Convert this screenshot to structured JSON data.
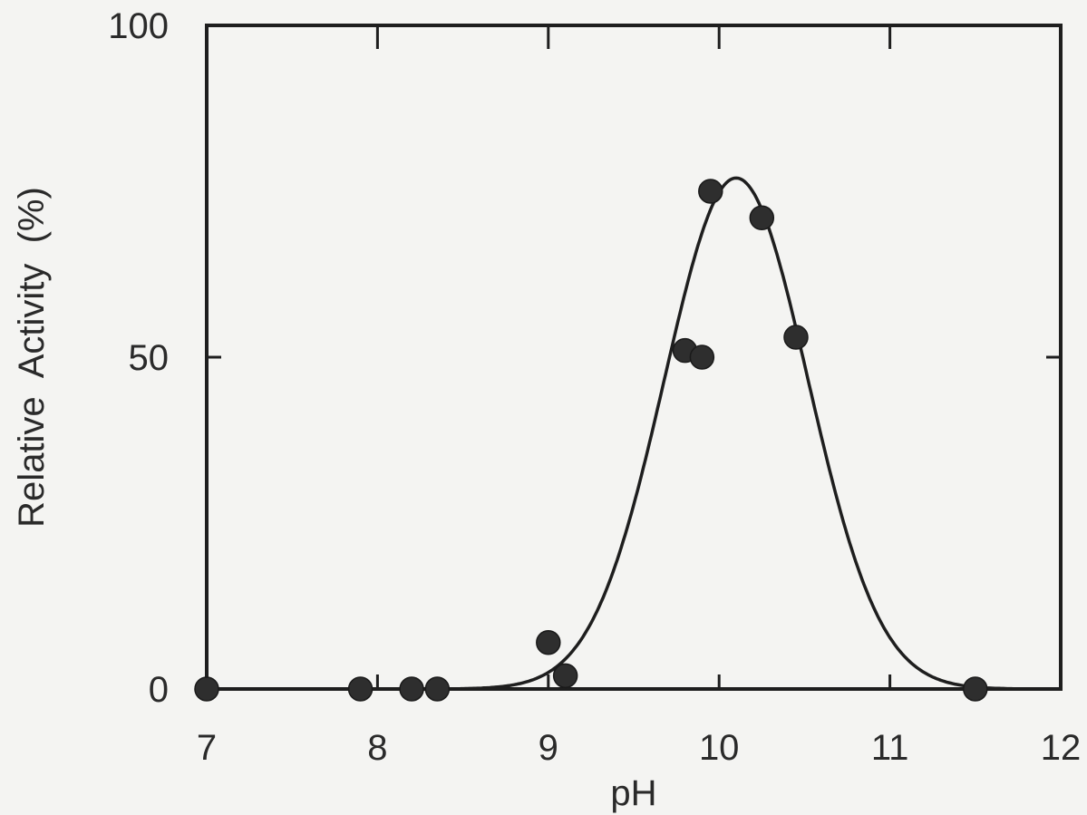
{
  "chart_data": {
    "type": "scatter",
    "xlabel": "pH",
    "ylabel": "Relative  Activity  (%)",
    "xlim": [
      7,
      12
    ],
    "ylim": [
      0,
      100
    ],
    "x_ticks": [
      "7",
      "8",
      "9",
      "10",
      "11",
      "12"
    ],
    "y_ticks": [
      "0",
      "50",
      "100"
    ],
    "grid": false,
    "series": [
      {
        "points": [
          {
            "x": 7.0,
            "y": 0
          },
          {
            "x": 7.9,
            "y": 0
          },
          {
            "x": 8.2,
            "y": 0
          },
          {
            "x": 8.35,
            "y": 0
          },
          {
            "x": 9.0,
            "y": 7
          },
          {
            "x": 9.1,
            "y": 2
          },
          {
            "x": 9.8,
            "y": 51
          },
          {
            "x": 9.9,
            "y": 50
          },
          {
            "x": 9.95,
            "y": 75
          },
          {
            "x": 10.25,
            "y": 71
          },
          {
            "x": 10.45,
            "y": 53
          },
          {
            "x": 11.5,
            "y": 0
          }
        ]
      }
    ],
    "fit_curve": {
      "type": "gaussian",
      "peak_x": 10.1,
      "peak_y": 77,
      "sigma": 0.42
    },
    "colors": {
      "axes": "#1e1e1e",
      "points": "#2e2e2e",
      "curve": "#1e1e1e"
    }
  }
}
